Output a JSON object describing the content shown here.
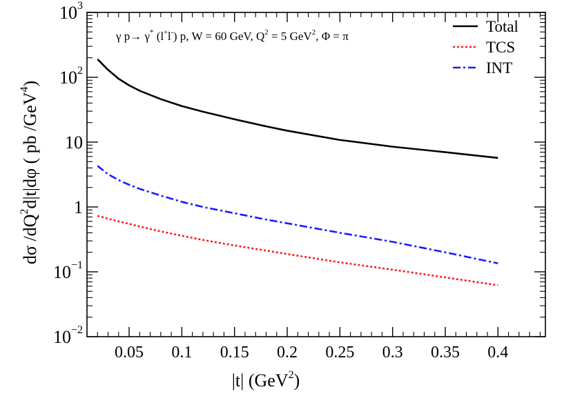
{
  "chart_data": {
    "type": "line",
    "title": "γ p→ γ* (l+l−) p, W = 60 GeV, Q² = 5 GeV², Φ = π",
    "title_parts": {
      "pre": "γ p→ γ",
      "star": "*",
      "open": " (l",
      "plus": "+",
      "l": "l",
      "minus": "-",
      "mid": ") p, W = 60 GeV, Q",
      "q2": "2",
      "mid2": " = 5 GeV",
      "gev2": "2",
      "post": ", Φ = π"
    },
    "xlabel": {
      "main": "|t| (GeV",
      "sup": "2",
      "close": ")"
    },
    "ylabel": {
      "main": "dσ /dQ",
      "sup1": "2",
      "mid": "d|t|dφ ( pb /GeV",
      "sup2": "4",
      "close": ")"
    },
    "xlim": [
      0.01,
      0.445
    ],
    "ylim": [
      0.01,
      1000
    ],
    "yscale": "log",
    "x_ticks": [
      0.05,
      0.1,
      0.15,
      0.2,
      0.25,
      0.3,
      0.35,
      0.4
    ],
    "x_tick_labels": [
      "0.05",
      "0.1",
      "0.15",
      "0.2",
      "0.25",
      "0.3",
      "0.35",
      "0.4"
    ],
    "y_tick_labels": [
      {
        "v": 1000,
        "base": "10",
        "exp": "3"
      },
      {
        "v": 100,
        "base": "10",
        "exp": "2"
      },
      {
        "v": 10,
        "base": "10",
        "exp": ""
      },
      {
        "v": 1,
        "base": "1",
        "exp": ""
      },
      {
        "v": 0.1,
        "base": "10",
        "exp": "−1"
      },
      {
        "v": 0.01,
        "base": "10",
        "exp": "−2"
      }
    ],
    "legend_position": "top-right",
    "x": [
      0.02,
      0.03,
      0.04,
      0.05,
      0.06,
      0.08,
      0.1,
      0.12,
      0.15,
      0.18,
      0.2,
      0.25,
      0.3,
      0.35,
      0.4
    ],
    "series": [
      {
        "name": "Total",
        "color": "#000000",
        "dash": "solid",
        "values": [
          190,
          130,
          95,
          75,
          62,
          46,
          36,
          29.5,
          22.5,
          17.5,
          15,
          10.8,
          8.5,
          7,
          5.7
        ]
      },
      {
        "name": "TCS",
        "color": "#ff1a1a",
        "dash": "dotted",
        "values": [
          0.73,
          0.66,
          0.6,
          0.55,
          0.5,
          0.42,
          0.36,
          0.31,
          0.255,
          0.212,
          0.188,
          0.14,
          0.108,
          0.082,
          0.062
        ]
      },
      {
        "name": "INT",
        "color": "#1a1aff",
        "dash": "dashdot",
        "values": [
          4.3,
          3.2,
          2.6,
          2.2,
          1.9,
          1.5,
          1.2,
          1.0,
          0.8,
          0.64,
          0.56,
          0.4,
          0.29,
          0.2,
          0.135
        ]
      }
    ]
  }
}
